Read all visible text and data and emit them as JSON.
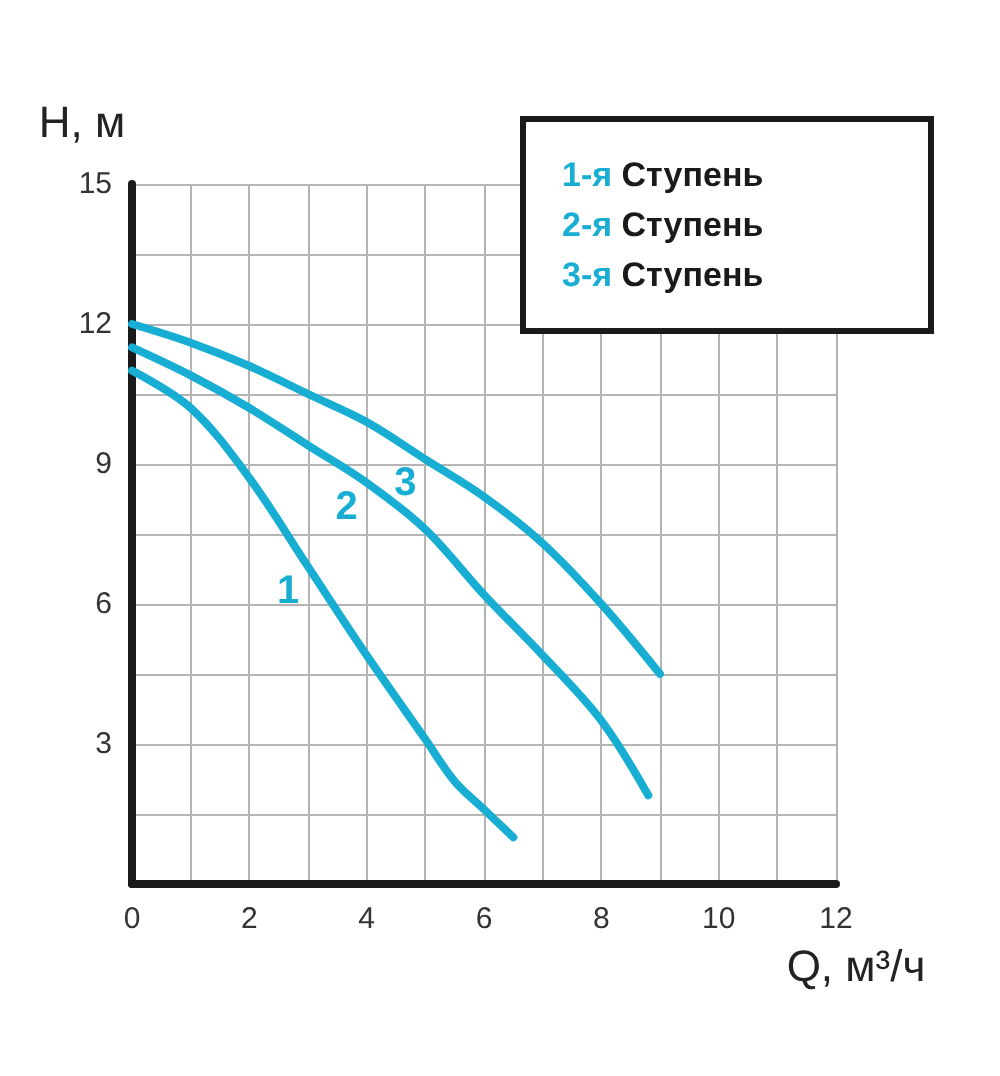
{
  "chart_data": {
    "type": "line",
    "xlabel": "Q, м³/ч",
    "ylabel": "H, м",
    "xlim": [
      0,
      12
    ],
    "xticks": [
      0,
      {
        "value": 1,
        "label": null
      },
      2,
      {
        "value": 3,
        "label": null
      },
      4,
      {
        "value": 5,
        "label": null
      },
      6,
      {
        "value": 7,
        "label": null
      },
      8,
      {
        "value": 9,
        "label": null
      },
      10,
      {
        "value": 11,
        "label": null
      },
      12
    ],
    "ylim": [
      0,
      15
    ],
    "yticks": [
      {
        "value": 0,
        "label": null
      },
      {
        "value": 1.5,
        "label": null
      },
      3,
      {
        "value": 4.5,
        "label": null
      },
      6,
      {
        "value": 7.5,
        "label": null
      },
      9,
      {
        "value": 10.5,
        "label": null
      },
      12,
      {
        "value": 13.5,
        "label": null
      },
      15
    ],
    "series": [
      {
        "name": "1",
        "color": "#18aed4",
        "x": [
          0,
          1,
          2,
          3,
          4,
          5,
          5.5,
          6,
          6.5
        ],
        "values": [
          11,
          10.2,
          8.7,
          6.8,
          4.9,
          3.1,
          2.2,
          1.6,
          1.0
        ]
      },
      {
        "name": "2",
        "color": "#18aed4",
        "x": [
          0,
          1,
          2,
          3,
          4,
          5,
          6,
          7,
          8,
          8.8
        ],
        "values": [
          11.5,
          10.9,
          10.2,
          9.4,
          8.6,
          7.6,
          6.2,
          4.9,
          3.5,
          1.9
        ]
      },
      {
        "name": "3",
        "color": "#18aed4",
        "x": [
          0,
          1,
          2,
          3,
          4,
          5,
          6,
          7,
          8,
          9
        ],
        "values": [
          12,
          11.6,
          11.1,
          10.5,
          9.9,
          9.1,
          8.3,
          7.3,
          6.0,
          4.5
        ]
      }
    ],
    "annotations": [
      "1-я Ступень",
      "2-я Ступень",
      "3-я Ступень"
    ],
    "grid": true,
    "marker": "none"
  }
}
